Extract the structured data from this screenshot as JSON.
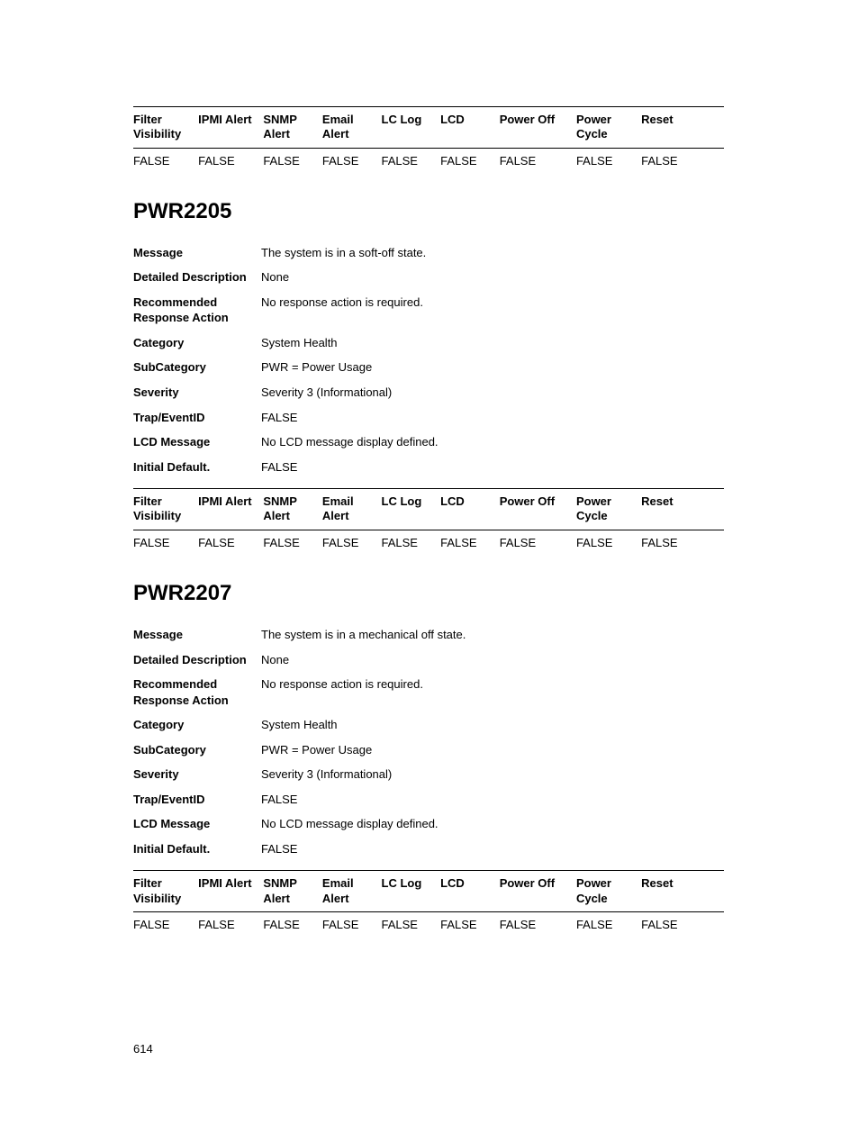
{
  "page_number": "614",
  "filter_table_columns": [
    "Filter Visibility",
    "IPMI Alert",
    "SNMP Alert",
    "Email Alert",
    "LC Log",
    "LCD",
    "Power Off",
    "Power Cycle",
    "Reset"
  ],
  "filter_table_column_widths_pct": [
    11,
    11,
    10,
    10,
    10,
    10,
    13,
    11,
    14
  ],
  "top_filter_row": [
    "FALSE",
    "FALSE",
    "FALSE",
    "FALSE",
    "FALSE",
    "FALSE",
    "FALSE",
    "FALSE",
    "FALSE"
  ],
  "sections": [
    {
      "id": "PWR2205",
      "rows": [
        {
          "key": "Message",
          "value": "The system is in a soft-off state."
        },
        {
          "key": "Detailed Description",
          "value": "None"
        },
        {
          "key": "Recommended Response Action",
          "value": "No response action is required."
        },
        {
          "key": "Category",
          "value": "System Health"
        },
        {
          "key": "SubCategory",
          "value": "PWR = Power Usage"
        },
        {
          "key": "Severity",
          "value": "Severity 3 (Informational)"
        },
        {
          "key": "Trap/EventID",
          "value": "FALSE"
        },
        {
          "key": "LCD Message",
          "value": "No LCD message display defined."
        },
        {
          "key": "Initial Default.",
          "value": "FALSE"
        }
      ],
      "filter_row": [
        "FALSE",
        "FALSE",
        "FALSE",
        "FALSE",
        "FALSE",
        "FALSE",
        "FALSE",
        "FALSE",
        "FALSE"
      ]
    },
    {
      "id": "PWR2207",
      "rows": [
        {
          "key": "Message",
          "value": "The system is in a mechanical off state."
        },
        {
          "key": "Detailed Description",
          "value": "None"
        },
        {
          "key": "Recommended Response Action",
          "value": "No response action is required."
        },
        {
          "key": "Category",
          "value": "System Health"
        },
        {
          "key": "SubCategory",
          "value": "PWR = Power Usage"
        },
        {
          "key": "Severity",
          "value": "Severity 3 (Informational)"
        },
        {
          "key": "Trap/EventID",
          "value": "FALSE"
        },
        {
          "key": "LCD Message",
          "value": "No LCD message display defined."
        },
        {
          "key": "Initial Default.",
          "value": "FALSE"
        }
      ],
      "filter_row": [
        "FALSE",
        "FALSE",
        "FALSE",
        "FALSE",
        "FALSE",
        "FALSE",
        "FALSE",
        "FALSE",
        "FALSE"
      ]
    }
  ]
}
